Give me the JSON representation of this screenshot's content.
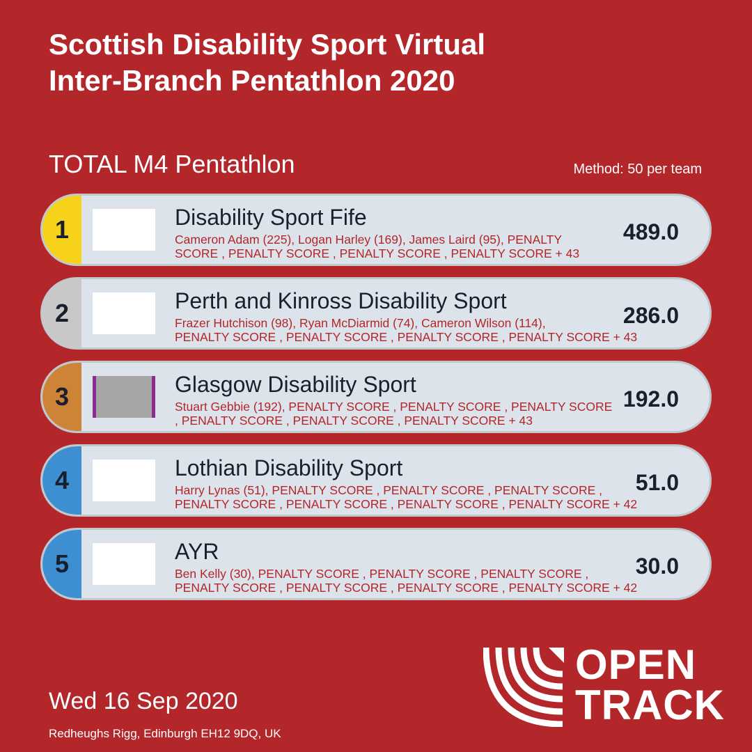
{
  "header": {
    "title_line1": "Scottish Disability Sport Virtual",
    "title_line2": "Inter-Branch Pentathlon 2020"
  },
  "event": {
    "name": "TOTAL M4 Pentathlon",
    "method": "Method: 50 per team"
  },
  "colors": {
    "background": "#b3262a",
    "row_background": "#dde3ea",
    "rank1": "#f7d21b",
    "rank2": "#c8c8c8",
    "rank3": "#cd8436",
    "rank_other": "#3d8fd1"
  },
  "results": [
    {
      "rank": "1",
      "team": "Disability Sport Fife",
      "athletes_line1": "Cameron Adam (225), Logan Harley (169), James Laird (95), PENALTY",
      "athletes_line2": "SCORE , PENALTY SCORE , PENALTY SCORE , PENALTY SCORE  + 43",
      "score": "489.0"
    },
    {
      "rank": "2",
      "team": "Perth and Kinross Disability Sport",
      "athletes_line1": "Frazer Hutchison (98), Ryan McDiarmid (74), Cameron Wilson (114),",
      "athletes_line2": "PENALTY SCORE , PENALTY SCORE , PENALTY SCORE , PENALTY SCORE  + 43",
      "score": "286.0"
    },
    {
      "rank": "3",
      "team": "Glasgow Disability Sport",
      "athletes_line1": "Stuart Gebbie (192), PENALTY SCORE , PENALTY SCORE , PENALTY SCORE",
      "athletes_line2": ", PENALTY SCORE , PENALTY SCORE , PENALTY SCORE  + 43",
      "score": "192.0"
    },
    {
      "rank": "4",
      "team": "Lothian Disability Sport",
      "athletes_line1": "Harry Lynas (51), PENALTY SCORE , PENALTY SCORE , PENALTY SCORE ,",
      "athletes_line2": "PENALTY SCORE , PENALTY SCORE , PENALTY SCORE , PENALTY SCORE  + 42",
      "score": "51.0"
    },
    {
      "rank": "5",
      "team": "AYR",
      "athletes_line1": "Ben Kelly (30), PENALTY SCORE , PENALTY SCORE , PENALTY SCORE ,",
      "athletes_line2": "PENALTY SCORE , PENALTY SCORE , PENALTY SCORE , PENALTY SCORE  + 42",
      "score": "30.0"
    }
  ],
  "footer": {
    "date": "Wed 16 Sep 2020",
    "venue": "Redheughs Rigg, Edinburgh EH12 9DQ, UK"
  },
  "brand": {
    "icon": "opentrack-logo-icon",
    "line1": "OPEN",
    "line2": "TRACK"
  }
}
